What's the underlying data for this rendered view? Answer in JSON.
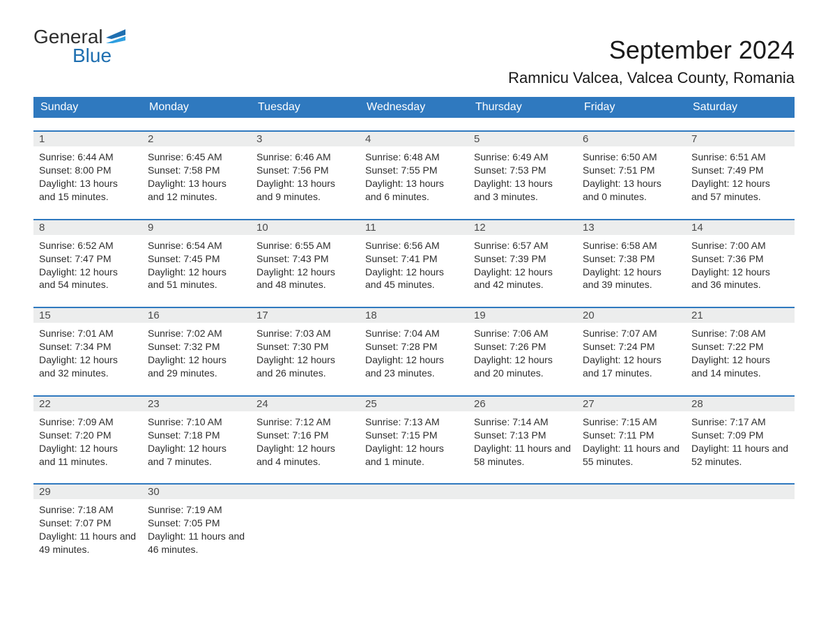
{
  "logo": {
    "general": "General",
    "blue": "Blue"
  },
  "title": "September 2024",
  "subtitle": "Ramnicu Valcea, Valcea County, Romania",
  "colors": {
    "header_bg": "#2f79bf",
    "sep": "#2f79bf",
    "daynum_bg": "#eceded",
    "text": "#2e2e2e",
    "logo_blue": "#1f6fb0"
  },
  "day_headers": [
    "Sunday",
    "Monday",
    "Tuesday",
    "Wednesday",
    "Thursday",
    "Friday",
    "Saturday"
  ],
  "labels": {
    "sunrise": "Sunrise: ",
    "sunset": "Sunset: ",
    "daylight": "Daylight: "
  },
  "weeks": [
    [
      {
        "n": "1",
        "sunrise": "6:44 AM",
        "sunset": "8:00 PM",
        "daylight": "13 hours and 15 minutes."
      },
      {
        "n": "2",
        "sunrise": "6:45 AM",
        "sunset": "7:58 PM",
        "daylight": "13 hours and 12 minutes."
      },
      {
        "n": "3",
        "sunrise": "6:46 AM",
        "sunset": "7:56 PM",
        "daylight": "13 hours and 9 minutes."
      },
      {
        "n": "4",
        "sunrise": "6:48 AM",
        "sunset": "7:55 PM",
        "daylight": "13 hours and 6 minutes."
      },
      {
        "n": "5",
        "sunrise": "6:49 AM",
        "sunset": "7:53 PM",
        "daylight": "13 hours and 3 minutes."
      },
      {
        "n": "6",
        "sunrise": "6:50 AM",
        "sunset": "7:51 PM",
        "daylight": "13 hours and 0 minutes."
      },
      {
        "n": "7",
        "sunrise": "6:51 AM",
        "sunset": "7:49 PM",
        "daylight": "12 hours and 57 minutes."
      }
    ],
    [
      {
        "n": "8",
        "sunrise": "6:52 AM",
        "sunset": "7:47 PM",
        "daylight": "12 hours and 54 minutes."
      },
      {
        "n": "9",
        "sunrise": "6:54 AM",
        "sunset": "7:45 PM",
        "daylight": "12 hours and 51 minutes."
      },
      {
        "n": "10",
        "sunrise": "6:55 AM",
        "sunset": "7:43 PM",
        "daylight": "12 hours and 48 minutes."
      },
      {
        "n": "11",
        "sunrise": "6:56 AM",
        "sunset": "7:41 PM",
        "daylight": "12 hours and 45 minutes."
      },
      {
        "n": "12",
        "sunrise": "6:57 AM",
        "sunset": "7:39 PM",
        "daylight": "12 hours and 42 minutes."
      },
      {
        "n": "13",
        "sunrise": "6:58 AM",
        "sunset": "7:38 PM",
        "daylight": "12 hours and 39 minutes."
      },
      {
        "n": "14",
        "sunrise": "7:00 AM",
        "sunset": "7:36 PM",
        "daylight": "12 hours and 36 minutes."
      }
    ],
    [
      {
        "n": "15",
        "sunrise": "7:01 AM",
        "sunset": "7:34 PM",
        "daylight": "12 hours and 32 minutes."
      },
      {
        "n": "16",
        "sunrise": "7:02 AM",
        "sunset": "7:32 PM",
        "daylight": "12 hours and 29 minutes."
      },
      {
        "n": "17",
        "sunrise": "7:03 AM",
        "sunset": "7:30 PM",
        "daylight": "12 hours and 26 minutes."
      },
      {
        "n": "18",
        "sunrise": "7:04 AM",
        "sunset": "7:28 PM",
        "daylight": "12 hours and 23 minutes."
      },
      {
        "n": "19",
        "sunrise": "7:06 AM",
        "sunset": "7:26 PM",
        "daylight": "12 hours and 20 minutes."
      },
      {
        "n": "20",
        "sunrise": "7:07 AM",
        "sunset": "7:24 PM",
        "daylight": "12 hours and 17 minutes."
      },
      {
        "n": "21",
        "sunrise": "7:08 AM",
        "sunset": "7:22 PM",
        "daylight": "12 hours and 14 minutes."
      }
    ],
    [
      {
        "n": "22",
        "sunrise": "7:09 AM",
        "sunset": "7:20 PM",
        "daylight": "12 hours and 11 minutes."
      },
      {
        "n": "23",
        "sunrise": "7:10 AM",
        "sunset": "7:18 PM",
        "daylight": "12 hours and 7 minutes."
      },
      {
        "n": "24",
        "sunrise": "7:12 AM",
        "sunset": "7:16 PM",
        "daylight": "12 hours and 4 minutes."
      },
      {
        "n": "25",
        "sunrise": "7:13 AM",
        "sunset": "7:15 PM",
        "daylight": "12 hours and 1 minute."
      },
      {
        "n": "26",
        "sunrise": "7:14 AM",
        "sunset": "7:13 PM",
        "daylight": "11 hours and 58 minutes."
      },
      {
        "n": "27",
        "sunrise": "7:15 AM",
        "sunset": "7:11 PM",
        "daylight": "11 hours and 55 minutes."
      },
      {
        "n": "28",
        "sunrise": "7:17 AM",
        "sunset": "7:09 PM",
        "daylight": "11 hours and 52 minutes."
      }
    ],
    [
      {
        "n": "29",
        "sunrise": "7:18 AM",
        "sunset": "7:07 PM",
        "daylight": "11 hours and 49 minutes."
      },
      {
        "n": "30",
        "sunrise": "7:19 AM",
        "sunset": "7:05 PM",
        "daylight": "11 hours and 46 minutes."
      },
      null,
      null,
      null,
      null,
      null
    ]
  ]
}
